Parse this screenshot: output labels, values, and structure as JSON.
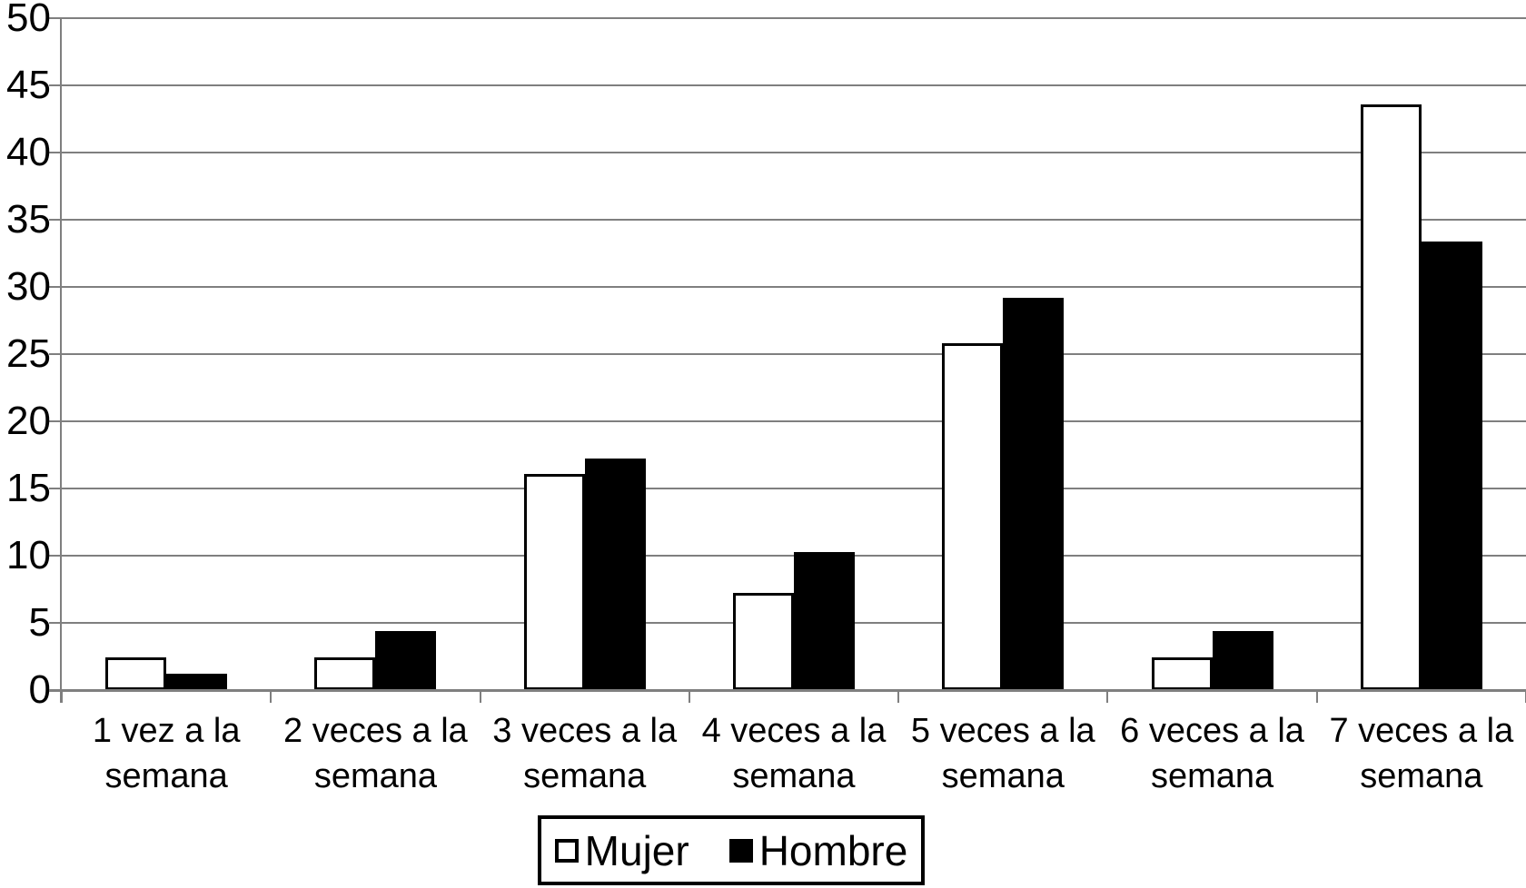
{
  "chart_data": {
    "type": "bar",
    "title": "",
    "xlabel": "",
    "ylabel": "",
    "categories": [
      "1 vez a la semana",
      "2 veces a la semana",
      "3 veces a la semana",
      "4 veces a la semana",
      "5 veces a la semana",
      "6 veces a la semana",
      "7 veces a la semana"
    ],
    "series": [
      {
        "name": "Mujer",
        "fill": "#ffffff",
        "border": "#000000",
        "values": [
          2.4,
          2.4,
          16.1,
          7.2,
          25.8,
          2.4,
          43.6
        ]
      },
      {
        "name": "Hombre",
        "fill": "#000000",
        "border": "#000000",
        "values": [
          1.2,
          4.4,
          17.2,
          10.3,
          29.2,
          4.4,
          33.4
        ]
      }
    ],
    "ylim": [
      0,
      50
    ],
    "ytick_interval": 5,
    "ytick_labels": [
      "0",
      "5",
      "10",
      "15",
      "20",
      "25",
      "30",
      "35",
      "40",
      "45",
      "50"
    ],
    "grid": "horizontal",
    "legend_position": "bottom-center"
  },
  "colors": {
    "background": "#ffffff",
    "gridline": "#7f7f7f",
    "axis": "#7f7f7f",
    "text": "#000000",
    "bar_mujer": "#ffffff",
    "bar_hombre": "#000000"
  }
}
